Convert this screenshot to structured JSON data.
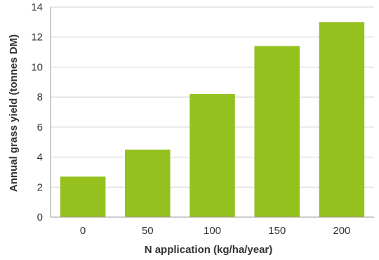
{
  "chart_data": {
    "type": "bar",
    "categories": [
      "0",
      "50",
      "100",
      "150",
      "200"
    ],
    "values": [
      2.7,
      4.5,
      8.2,
      11.4,
      13.0
    ],
    "title": "",
    "xlabel": "N application (kg/ha/year)",
    "ylabel": "Annual grass yield (tonnes DM)",
    "ylim": [
      0,
      14
    ],
    "yticks": [
      "0",
      "2",
      "4",
      "6",
      "8",
      "10",
      "12",
      "14"
    ],
    "grid": true,
    "bar_color": "#95c11f"
  }
}
